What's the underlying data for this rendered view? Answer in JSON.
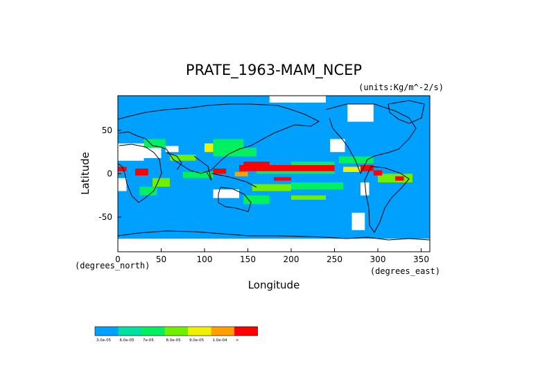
{
  "chart_data": {
    "type": "heatmap",
    "title": "PRATE_1963-MAM_NCEP",
    "units": "(units:Kg/m^-2/s)",
    "xlabel": "Longitude",
    "ylabel": "Latitude",
    "x_unit_note": "(degrees_east)",
    "y_unit_note": "(degrees_north)",
    "xlim": [
      0,
      360
    ],
    "ylim": [
      -90,
      90
    ],
    "x_ticks": [
      0,
      50,
      100,
      150,
      200,
      250,
      300,
      350
    ],
    "y_ticks": [
      -50,
      0,
      50
    ],
    "grid": false,
    "colorbar": {
      "position": "bottom-left",
      "colors": [
        "#00a0ff",
        "#00e0a0",
        "#00f060",
        "#70f000",
        "#f0f000",
        "#ffa000",
        "#ff0000"
      ],
      "labels": [
        "3.0e-05",
        "6.0e-05",
        "7e-05",
        "8.0e-05",
        "9.0e-05",
        "1.0e-04",
        "∞"
      ]
    },
    "fields": {
      "background_level": 0,
      "dry_regions": [
        {
          "lon": [
            175,
            240
          ],
          "lat": [
            82,
            90
          ]
        },
        {
          "lon": [
            265,
            295
          ],
          "lat": [
            60,
            80
          ]
        },
        {
          "lon": [
            0,
            30
          ],
          "lat": [
            15,
            35
          ]
        },
        {
          "lon": [
            20,
            50
          ],
          "lat": [
            18,
            30
          ]
        },
        {
          "lon": [
            55,
            70
          ],
          "lat": [
            25,
            32
          ]
        },
        {
          "lon": [
            245,
            262
          ],
          "lat": [
            25,
            40
          ]
        },
        {
          "lon": [
            280,
            290
          ],
          "lat": [
            -25,
            -10
          ]
        },
        {
          "lon": [
            110,
            140
          ],
          "lat": [
            -28,
            -18
          ]
        },
        {
          "lon": [
            0,
            10
          ],
          "lat": [
            -20,
            -5
          ]
        },
        {
          "lon": [
            270,
            285
          ],
          "lat": [
            -65,
            -45
          ]
        },
        {
          "lon": [
            0,
            360
          ],
          "lat": [
            -90,
            -75
          ]
        }
      ],
      "wet_regions": [
        {
          "lon": [
            140,
            250
          ],
          "lat": [
            3,
            10
          ],
          "level": 6
        },
        {
          "lon": [
            145,
            175
          ],
          "lat": [
            8,
            14
          ],
          "level": 6
        },
        {
          "lon": [
            20,
            35
          ],
          "lat": [
            -2,
            6
          ],
          "level": 6
        },
        {
          "lon": [
            0,
            10
          ],
          "lat": [
            3,
            8
          ],
          "level": 6
        },
        {
          "lon": [
            280,
            295
          ],
          "lat": [
            3,
            10
          ],
          "level": 6
        },
        {
          "lon": [
            295,
            305
          ],
          "lat": [
            -2,
            4
          ],
          "level": 6
        },
        {
          "lon": [
            320,
            330
          ],
          "lat": [
            -8,
            -3
          ],
          "level": 6
        },
        {
          "lon": [
            110,
            125
          ],
          "lat": [
            0,
            6
          ],
          "level": 6
        },
        {
          "lon": [
            180,
            200
          ],
          "lat": [
            -8,
            -4
          ],
          "level": 6
        },
        {
          "lon": [
            135,
            150
          ],
          "lat": [
            -3,
            2
          ],
          "level": 5
        },
        {
          "lon": [
            260,
            280
          ],
          "lat": [
            2,
            8
          ],
          "level": 4
        },
        {
          "lon": [
            100,
            110
          ],
          "lat": [
            25,
            35
          ],
          "level": 4
        },
        {
          "lon": [
            60,
            90
          ],
          "lat": [
            15,
            22
          ],
          "level": 3
        },
        {
          "lon": [
            40,
            60
          ],
          "lat": [
            -15,
            -5
          ],
          "level": 3
        },
        {
          "lon": [
            155,
            200
          ],
          "lat": [
            -20,
            -12
          ],
          "level": 3
        },
        {
          "lon": [
            200,
            240
          ],
          "lat": [
            -30,
            -25
          ],
          "level": 3
        },
        {
          "lon": [
            300,
            340
          ],
          "lat": [
            -10,
            0
          ],
          "level": 3
        },
        {
          "lon": [
            25,
            45
          ],
          "lat": [
            -25,
            -15
          ],
          "level": 2
        },
        {
          "lon": [
            75,
            110
          ],
          "lat": [
            -5,
            2
          ],
          "level": 2
        },
        {
          "lon": [
            110,
            160
          ],
          "lat": [
            20,
            30
          ],
          "level": 2
        },
        {
          "lon": [
            255,
            295
          ],
          "lat": [
            12,
            20
          ],
          "level": 2
        },
        {
          "lon": [
            160,
            250
          ],
          "lat": [
            0,
            3
          ],
          "level": 2
        },
        {
          "lon": [
            200,
            250
          ],
          "lat": [
            10,
            14
          ],
          "level": 2
        },
        {
          "lon": [
            30,
            55
          ],
          "lat": [
            30,
            40
          ],
          "level": 2
        },
        {
          "lon": [
            110,
            145
          ],
          "lat": [
            30,
            40
          ],
          "level": 2
        },
        {
          "lon": [
            200,
            260
          ],
          "lat": [
            -18,
            -10
          ],
          "level": 2
        },
        {
          "lon": [
            145,
            175
          ],
          "lat": [
            -35,
            -25
          ],
          "level": 2
        }
      ]
    }
  }
}
